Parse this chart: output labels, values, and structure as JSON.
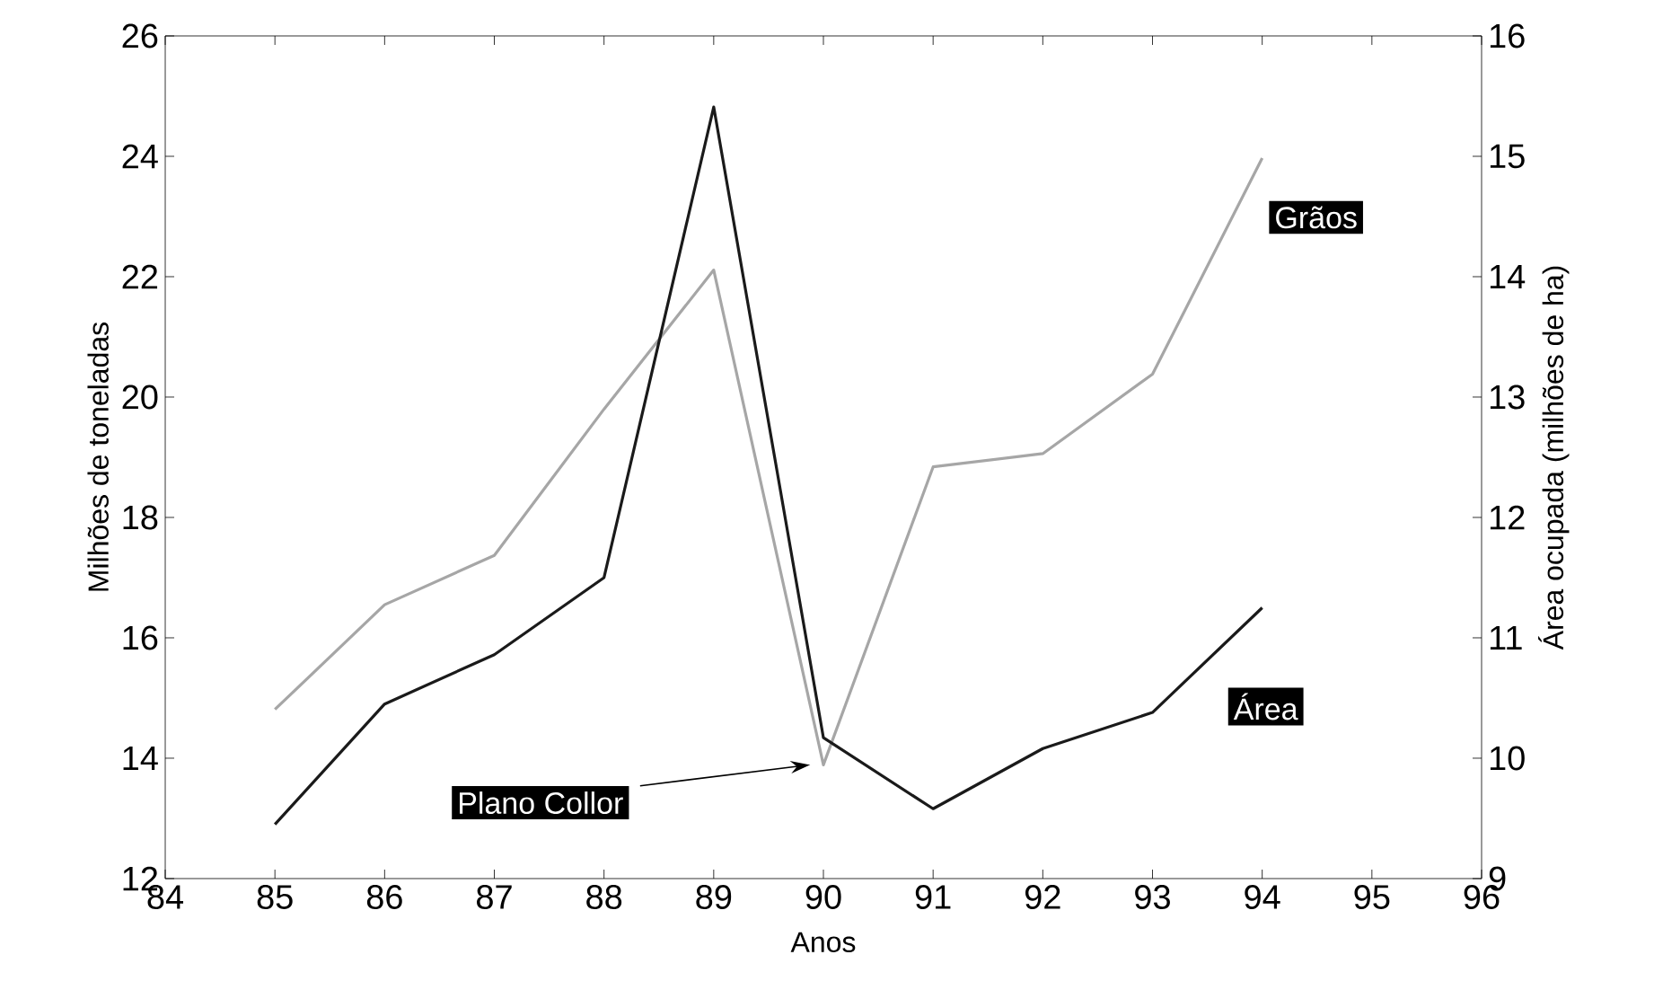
{
  "chart_data": {
    "type": "line",
    "xlabel": "Anos",
    "ylabel": "Milhões de toneladas",
    "y2label": "Área ocupada (milhões de ha)",
    "x": [
      85,
      86,
      87,
      88,
      89,
      90,
      91,
      92,
      93,
      94
    ],
    "series": [
      {
        "name": "Grãos",
        "color": "#a6a6a6",
        "values": [
          14.81,
          16.55,
          17.37,
          19.8,
          22.11,
          13.89,
          18.84,
          19.06,
          20.38,
          23.97
        ]
      },
      {
        "name": "Área",
        "color": "#1a1a1a",
        "axis": "y2",
        "values": [
          9.45,
          10.45,
          10.86,
          11.5,
          15.41,
          10.17,
          9.58,
          10.08,
          10.38,
          11.25
        ]
      }
    ],
    "xlim": [
      84,
      96
    ],
    "xticks": [
      84,
      85,
      86,
      87,
      88,
      89,
      90,
      91,
      92,
      93,
      94,
      95,
      96
    ],
    "ylim": [
      12,
      26
    ],
    "yticks": [
      12,
      14,
      16,
      18,
      20,
      22,
      24,
      26
    ],
    "y2lim": [
      9,
      16
    ],
    "y2ticks": [
      9,
      10,
      11,
      12,
      13,
      14,
      15,
      16
    ],
    "annotations": [
      "Plano Collor"
    ],
    "grid": false,
    "legend": false,
    "marker": "none",
    "line_style": "solid"
  }
}
